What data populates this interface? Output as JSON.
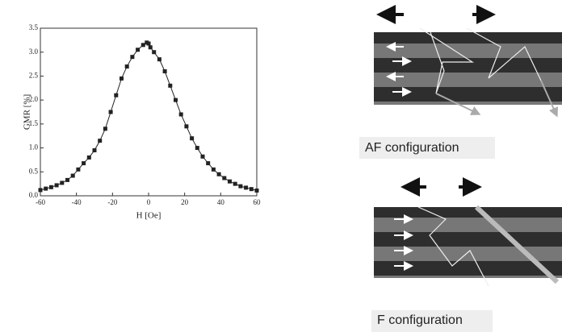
{
  "chart_data": {
    "type": "line",
    "xlabel": "H [Oe]",
    "ylabel": "GMR [%]",
    "x": [
      -60,
      -57,
      -54,
      -51,
      -48,
      -45,
      -42,
      -39,
      -36,
      -33,
      -30,
      -27,
      -24,
      -21,
      -18,
      -15,
      -12,
      -9,
      -6,
      -3,
      -1,
      0,
      1,
      3,
      6,
      9,
      12,
      15,
      18,
      21,
      24,
      27,
      30,
      33,
      36,
      39,
      42,
      45,
      48,
      51,
      54,
      57,
      60
    ],
    "values": [
      0.12,
      0.15,
      0.18,
      0.22,
      0.27,
      0.33,
      0.42,
      0.55,
      0.68,
      0.8,
      0.95,
      1.15,
      1.4,
      1.75,
      2.1,
      2.45,
      2.7,
      2.9,
      3.05,
      3.15,
      3.2,
      3.18,
      3.1,
      3.0,
      2.85,
      2.6,
      2.3,
      2.0,
      1.7,
      1.45,
      1.2,
      1.0,
      0.82,
      0.68,
      0.55,
      0.45,
      0.37,
      0.3,
      0.25,
      0.2,
      0.17,
      0.14,
      0.11
    ],
    "color": "#222222",
    "xlim": [
      -60,
      60
    ],
    "xticks": [
      -60,
      -40,
      -20,
      0,
      20,
      40,
      60
    ],
    "ylim": [
      0,
      3.5
    ],
    "yticks": [
      {
        "value": 0,
        "label": "0.0"
      },
      0.5,
      {
        "value": 1,
        "label": "1.0"
      },
      1.5,
      {
        "value": 2,
        "label": "2.0"
      },
      2.5,
      {
        "value": 3,
        "label": "3.0"
      },
      3.5
    ]
  },
  "diagrams": {
    "af_label": "AF configuration",
    "f_label": "F configuration"
  }
}
